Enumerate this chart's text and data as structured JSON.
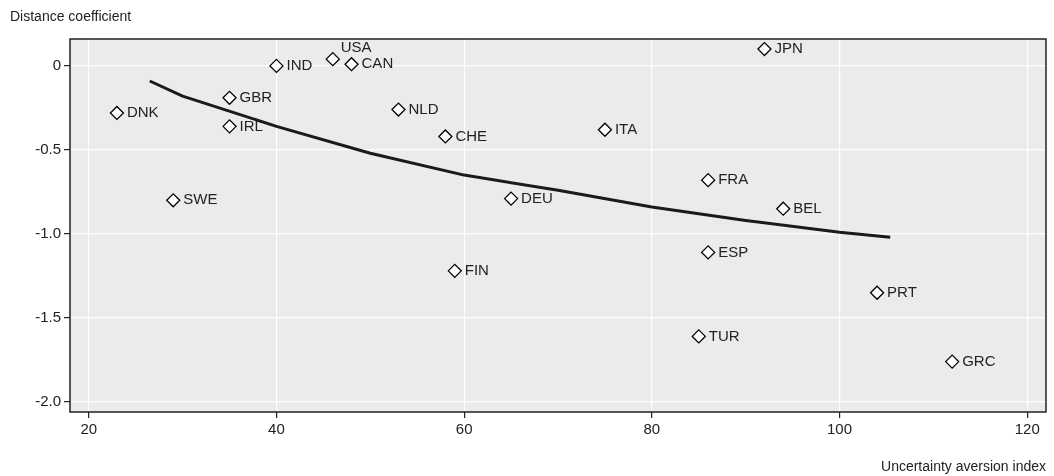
{
  "chart_data": {
    "type": "scatter",
    "xlabel": "Uncertainty aversion index",
    "ylabel": "Distance coefficient",
    "xlim": [
      18,
      122
    ],
    "xticks": [
      20,
      40,
      60,
      80,
      100,
      120
    ],
    "ylim": [
      -2.06,
      0.16
    ],
    "yticks": [
      {
        "value": 0,
        "label": "0"
      },
      {
        "value": -0.5,
        "label": "-0.5"
      },
      {
        "value": -1,
        "label": "-1.0"
      },
      {
        "value": -1.5,
        "label": "-1.5"
      },
      {
        "value": -2,
        "label": "-2.0"
      }
    ],
    "grid": true,
    "legend": false,
    "marker": "diamond",
    "series": [
      {
        "color": "#000000",
        "x": [
          23,
          29,
          35,
          35,
          40,
          46,
          48,
          53,
          58,
          59,
          65,
          75,
          92,
          86,
          94,
          86,
          85,
          104,
          112
        ],
        "values": [
          -0.28,
          -0.8,
          -0.19,
          -0.36,
          0,
          0.04,
          0.01,
          -0.26,
          -0.42,
          -1.22,
          -0.79,
          -0.38,
          0.1,
          -0.68,
          -0.85,
          -1.11,
          -1.61,
          -1.35,
          -1.76
        ]
      },
      {
        "type": "line",
        "color": "#1a1a1a",
        "marker": "none",
        "x": [
          26.5,
          30,
          40,
          50,
          60,
          70,
          80,
          90,
          100,
          105.4
        ],
        "values": [
          -0.09,
          -0.18,
          -0.36,
          -0.52,
          -0.65,
          -0.74,
          -0.84,
          -0.92,
          -0.99,
          -1.02
        ]
      }
    ],
    "annotations": [
      {
        "text": "DNK",
        "x": 23,
        "y": -0.28
      },
      {
        "text": "SWE",
        "x": 29,
        "y": -0.8
      },
      {
        "text": "GBR",
        "x": 35,
        "y": -0.19
      },
      {
        "text": "IRL",
        "x": 35,
        "y": -0.36
      },
      {
        "text": "IND",
        "x": 40,
        "y": 0
      },
      {
        "text": "USA",
        "x": 46,
        "y": 0.04
      },
      {
        "text": "CAN",
        "x": 48,
        "y": 0.01
      },
      {
        "text": "NLD",
        "x": 53,
        "y": -0.26
      },
      {
        "text": "CHE",
        "x": 58,
        "y": -0.42
      },
      {
        "text": "FIN",
        "x": 59,
        "y": -1.22
      },
      {
        "text": "DEU",
        "x": 65,
        "y": -0.79
      },
      {
        "text": "ITA",
        "x": 75,
        "y": -0.38
      },
      {
        "text": "JPN",
        "x": 92,
        "y": 0.1
      },
      {
        "text": "FRA",
        "x": 86,
        "y": -0.68
      },
      {
        "text": "BEL",
        "x": 94,
        "y": -0.85
      },
      {
        "text": "ESP",
        "x": 86,
        "y": -1.11
      },
      {
        "text": "TUR",
        "x": 85,
        "y": -1.61
      },
      {
        "text": "PRT",
        "x": 104,
        "y": -1.35
      },
      {
        "text": "GRC",
        "x": 112,
        "y": -1.76
      }
    ]
  }
}
